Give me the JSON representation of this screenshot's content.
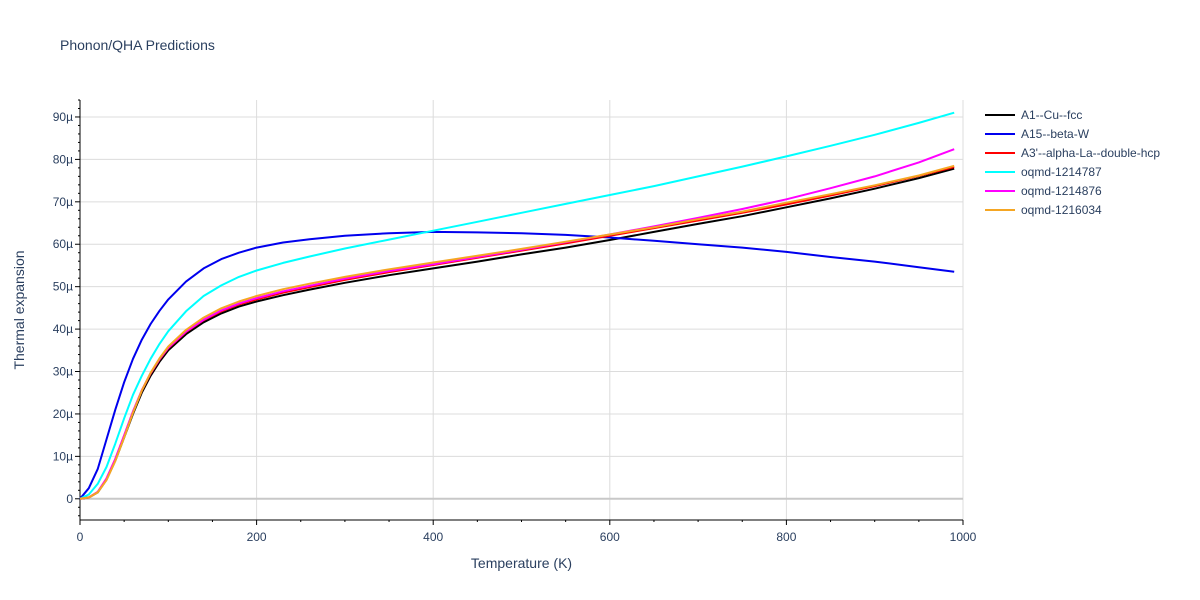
{
  "chart_data": {
    "type": "line",
    "title": "Phonon/QHA Predictions",
    "xlabel": "Temperature (K)",
    "ylabel": "Thermal expansion",
    "xlim": [
      0,
      1000
    ],
    "ylim": [
      -5,
      94
    ],
    "x_ticks": [
      0,
      200,
      400,
      600,
      800,
      1000
    ],
    "x_tick_labels": [
      "0",
      "200",
      "400",
      "600",
      "800",
      "1000"
    ],
    "y_ticks": [
      0,
      10,
      20,
      30,
      40,
      50,
      60,
      70,
      80,
      90
    ],
    "y_tick_labels": [
      "0",
      "10µ",
      "20µ",
      "30µ",
      "40µ",
      "50µ",
      "60µ",
      "70µ",
      "80µ",
      "90µ"
    ],
    "grid": true,
    "legend_position": "right",
    "series": [
      {
        "name": "A1--Cu--fcc",
        "color": "#000000",
        "x": [
          0,
          10,
          20,
          30,
          40,
          50,
          60,
          70,
          80,
          90,
          100,
          120,
          140,
          160,
          180,
          200,
          230,
          260,
          300,
          350,
          400,
          450,
          500,
          550,
          600,
          650,
          700,
          750,
          800,
          850,
          900,
          950,
          990
        ],
        "y": [
          0,
          0.3,
          1.5,
          4.5,
          9.0,
          14.5,
          20.0,
          25.0,
          29.0,
          32.3,
          35.0,
          38.8,
          41.6,
          43.7,
          45.3,
          46.5,
          48.0,
          49.3,
          50.9,
          52.7,
          54.3,
          55.9,
          57.6,
          59.2,
          61.0,
          62.9,
          64.8,
          66.6,
          68.7,
          70.8,
          73.1,
          75.6,
          77.8
        ]
      },
      {
        "name": "A15--beta-W",
        "color": "#0000ee",
        "x": [
          0,
          10,
          20,
          30,
          40,
          50,
          60,
          70,
          80,
          90,
          100,
          120,
          140,
          160,
          180,
          200,
          230,
          260,
          300,
          350,
          400,
          450,
          500,
          550,
          600,
          650,
          700,
          750,
          800,
          850,
          900,
          950,
          990
        ],
        "y": [
          0,
          2.5,
          7.0,
          14.0,
          21.0,
          27.5,
          33.0,
          37.5,
          41.2,
          44.3,
          47.0,
          51.2,
          54.3,
          56.5,
          58.0,
          59.2,
          60.4,
          61.2,
          62.0,
          62.6,
          62.9,
          62.8,
          62.6,
          62.2,
          61.6,
          60.8,
          60.0,
          59.2,
          58.2,
          57.0,
          55.9,
          54.6,
          53.5
        ]
      },
      {
        "name": "A3'--alpha-La--double-hcp",
        "color": "#ff0000",
        "x": [
          0,
          10,
          20,
          30,
          40,
          50,
          60,
          70,
          80,
          90,
          100,
          120,
          140,
          160,
          180,
          200,
          230,
          260,
          300,
          350,
          400,
          450,
          500,
          550,
          600,
          650,
          700,
          750,
          800,
          850,
          900,
          950,
          990
        ],
        "y": [
          0,
          0.3,
          1.6,
          4.7,
          9.3,
          14.9,
          20.5,
          25.5,
          29.5,
          32.8,
          35.5,
          39.3,
          42.1,
          44.2,
          45.8,
          47.0,
          48.6,
          49.9,
          51.6,
          53.4,
          55.1,
          56.8,
          58.5,
          60.2,
          62.0,
          63.8,
          65.6,
          67.4,
          69.4,
          71.5,
          73.7,
          76.1,
          78.2
        ]
      },
      {
        "name": "oqmd-1214787",
        "color": "#00ffff",
        "x": [
          0,
          10,
          20,
          30,
          40,
          50,
          60,
          70,
          80,
          90,
          100,
          120,
          140,
          160,
          180,
          200,
          230,
          260,
          300,
          350,
          400,
          450,
          500,
          550,
          600,
          650,
          700,
          750,
          800,
          850,
          900,
          950,
          990
        ],
        "y": [
          0,
          1.0,
          3.5,
          7.5,
          13.0,
          19.0,
          24.5,
          29.0,
          33.0,
          36.5,
          39.5,
          44.2,
          47.8,
          50.3,
          52.3,
          53.8,
          55.6,
          57.1,
          59.0,
          61.1,
          63.2,
          65.3,
          67.4,
          69.5,
          71.6,
          73.7,
          76.0,
          78.3,
          80.7,
          83.2,
          85.8,
          88.6,
          91.0
        ]
      },
      {
        "name": "oqmd-1214876",
        "color": "#ff00ff",
        "x": [
          0,
          10,
          20,
          30,
          40,
          50,
          60,
          70,
          80,
          90,
          100,
          120,
          140,
          160,
          180,
          200,
          230,
          260,
          300,
          350,
          400,
          450,
          500,
          550,
          600,
          650,
          700,
          750,
          800,
          850,
          900,
          950,
          990
        ],
        "y": [
          0,
          0.3,
          1.6,
          4.8,
          9.4,
          15.0,
          20.6,
          25.6,
          29.6,
          32.9,
          35.6,
          39.4,
          42.2,
          44.4,
          46.0,
          47.3,
          48.9,
          50.2,
          51.9,
          53.7,
          55.3,
          57.0,
          58.7,
          60.5,
          62.3,
          64.2,
          66.2,
          68.3,
          70.6,
          73.2,
          76.0,
          79.3,
          82.4
        ]
      },
      {
        "name": "oqmd-1216034",
        "color": "#f5a623",
        "x": [
          0,
          10,
          20,
          30,
          40,
          50,
          60,
          70,
          80,
          90,
          100,
          120,
          140,
          160,
          180,
          200,
          230,
          260,
          300,
          350,
          400,
          450,
          500,
          550,
          600,
          650,
          700,
          750,
          800,
          850,
          900,
          950,
          990
        ],
        "y": [
          0,
          0.3,
          1.5,
          4.4,
          8.9,
          14.5,
          20.3,
          25.5,
          29.7,
          33.1,
          35.9,
          39.8,
          42.7,
          44.9,
          46.5,
          47.8,
          49.4,
          50.7,
          52.3,
          54.1,
          55.7,
          57.3,
          58.9,
          60.6,
          62.3,
          64.0,
          65.9,
          67.7,
          69.8,
          71.8,
          73.9,
          76.2,
          78.5
        ]
      }
    ]
  }
}
